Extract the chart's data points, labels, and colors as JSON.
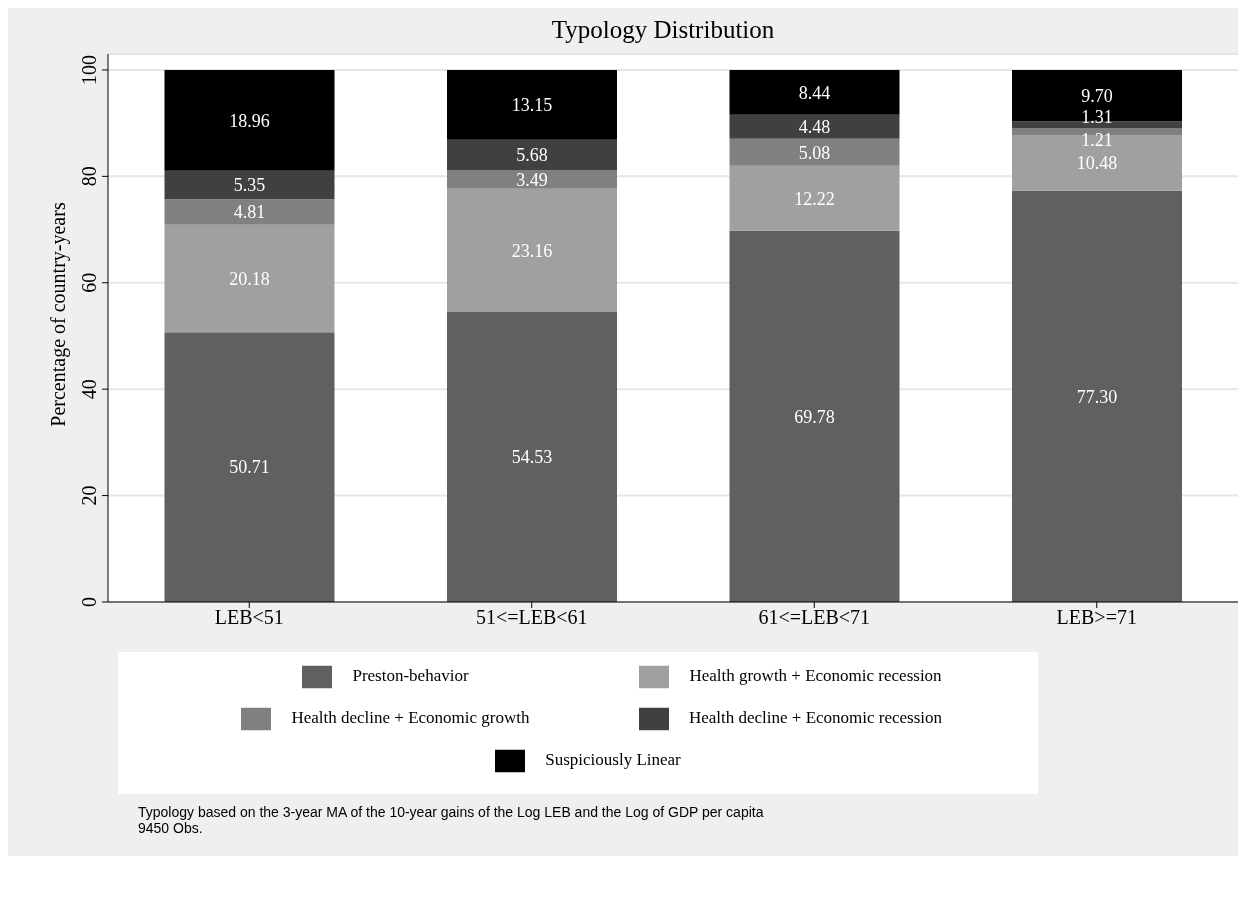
{
  "chart_data": {
    "type": "bar",
    "title": "Typology Distribution",
    "ylabel": "Percentage of country-years",
    "categories": [
      "LEB<51",
      "51<=LEB<61",
      "61<=LEB<71",
      "LEB>=71"
    ],
    "stacked": true,
    "ylim": [
      0,
      103
    ],
    "yticks": [
      0,
      20,
      40,
      60,
      80,
      100
    ],
    "grid": "y",
    "legend": "bottom",
    "series": [
      {
        "name": "Preston-behavior",
        "color": "#606060",
        "values": [
          50.71,
          54.53,
          69.78,
          77.3
        ],
        "value_labels": [
          "50.71",
          "54.53",
          "69.78",
          "77.30"
        ]
      },
      {
        "name": "Health growth + Economic recession",
        "color": "#a0a0a0",
        "values": [
          20.18,
          23.16,
          12.22,
          10.48
        ],
        "value_labels": [
          "20.18",
          "23.16",
          "12.22",
          "10.48"
        ]
      },
      {
        "name": "Health decline + Economic growth",
        "color": "#808080",
        "values": [
          4.81,
          3.49,
          5.08,
          1.21
        ],
        "value_labels": [
          "4.81",
          "3.49",
          "5.08",
          "1.21"
        ]
      },
      {
        "name": "Health decline + Economic recession",
        "color": "#404040",
        "values": [
          5.35,
          5.68,
          4.48,
          1.31
        ],
        "value_labels": [
          "5.35",
          "5.68",
          "4.48",
          "1.31"
        ]
      },
      {
        "name": "Suspiciously Linear",
        "color": "#000000",
        "values": [
          18.96,
          13.15,
          8.44,
          9.7
        ],
        "value_labels": [
          "18.96",
          "13.15",
          "8.44",
          "9.70"
        ]
      }
    ],
    "annotations": [
      "Typology based on the 3-year MA of the 10-year gains of the Log LEB and the Log of GDP per capita",
      "9450 Obs."
    ]
  }
}
